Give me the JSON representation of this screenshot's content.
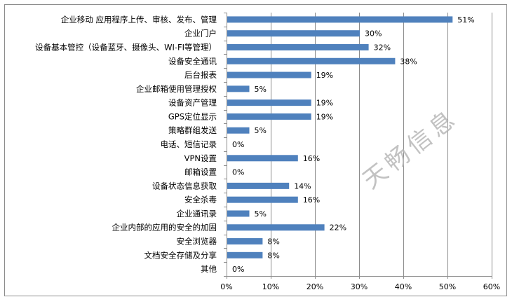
{
  "chart_data": {
    "type": "bar",
    "orientation": "horizontal",
    "title": "",
    "xlabel": "",
    "ylabel": "",
    "categories": [
      "企业移动 应用程序上传、审核、发布、管理",
      "企业门户",
      "设备基本管控（设备蓝牙、摄像头、WI-FI等管理）",
      "设备安全通讯",
      "后台报表",
      "企业邮箱使用管理授权",
      "设备资产管理",
      "GPS定位显示",
      "策略群组发送",
      "电话、短信记录",
      "VPN设置",
      "邮箱设置",
      "设备状态信息获取",
      "安全杀毒",
      "企业通讯录",
      "企业内部的应用的安全的加固",
      "安全浏览器",
      "文档安全存储及分享",
      "其他"
    ],
    "values": [
      51,
      30,
      32,
      38,
      19,
      5,
      19,
      19,
      5,
      0,
      16,
      0,
      14,
      16,
      5,
      22,
      8,
      8,
      0
    ],
    "value_labels": [
      "51%",
      "30%",
      "32%",
      "38%",
      "19%",
      "5%",
      "19%",
      "19%",
      "5%",
      "0%",
      "16%",
      "0%",
      "14%",
      "16%",
      "5%",
      "22%",
      "8%",
      "8%",
      "0%"
    ],
    "xlim": [
      0,
      60
    ],
    "x_ticks": [
      "0%",
      "10%",
      "20%",
      "30%",
      "40%",
      "50%",
      "60%"
    ],
    "x_tick_values": [
      0,
      10,
      20,
      30,
      40,
      50,
      60
    ],
    "grid": "vertical",
    "legend": "none",
    "bar_color": "#4f81bd",
    "watermark": "天畅信息"
  }
}
